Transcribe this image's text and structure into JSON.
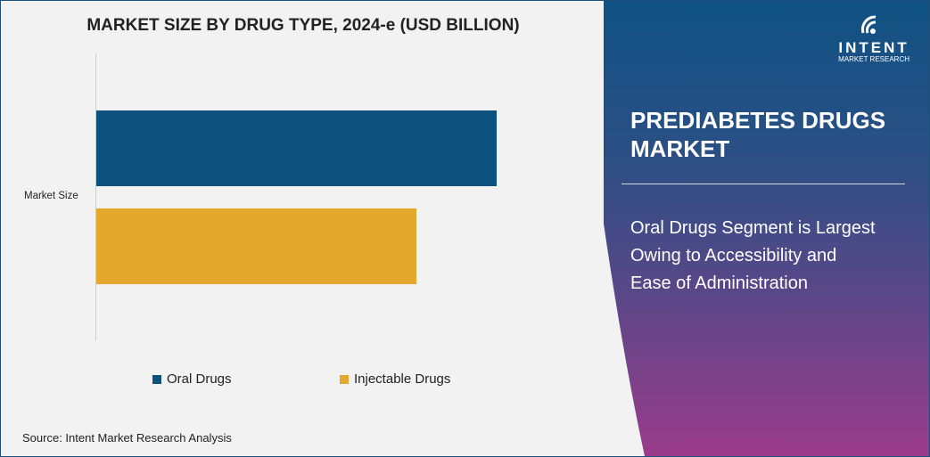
{
  "chart_data": {
    "type": "bar",
    "orientation": "horizontal",
    "title": "MARKET SIZE BY DRUG TYPE, 2024-e (USD BILLION)",
    "categories": [
      "Market Size"
    ],
    "series": [
      {
        "name": "Oral Drugs",
        "values": [
          1.0
        ],
        "color": "#0d527f"
      },
      {
        "name": "Injectable Drugs",
        "values": [
          0.8
        ],
        "color": "#e5a82e"
      }
    ],
    "xlabel": "",
    "ylabel": "",
    "grid": false,
    "legend_position": "bottom"
  },
  "source": "Source: Intent Market Research Analysis",
  "panel": {
    "title_line1": "PREDIABETES DRUGS",
    "title_line2": "MARKET",
    "text_line1": "Oral Drugs Segment is Largest",
    "text_line2": "Owing to Accessibility and",
    "text_line3": "Ease of Administration"
  },
  "logo": {
    "brand": "INTENT",
    "tm": "TM",
    "sub": "MARKET RESEARCH"
  }
}
